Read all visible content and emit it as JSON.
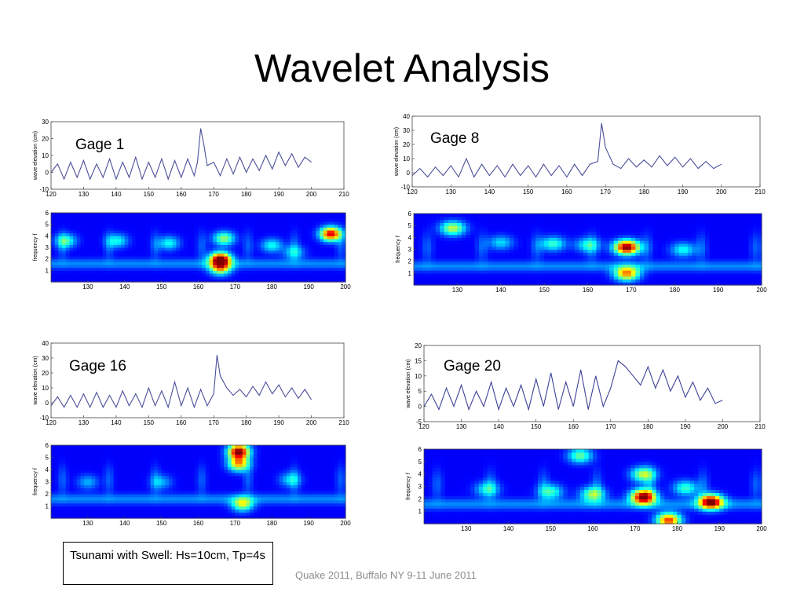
{
  "slide": {
    "title": "Wavelet Analysis",
    "note": "Tsunami with Swell: Hs=10cm, Tp=4s",
    "footer": "Quake 2011, Buffalo NY 9-11 June 2011"
  },
  "chart_data": [
    {
      "id": "g1",
      "label": "Gage 1",
      "type": "line",
      "ylabel": "wave elevation (cm)",
      "xlim": [
        120,
        210
      ],
      "ylim": [
        -10,
        30
      ],
      "xticks": [
        120,
        130,
        140,
        150,
        160,
        170,
        180,
        190,
        200,
        210
      ],
      "yticks": [
        -10,
        0,
        10,
        20,
        30
      ],
      "line_color": "#4a4f9a",
      "x": [
        120,
        122,
        124,
        126,
        128,
        130,
        132,
        134,
        136,
        138,
        140,
        142,
        144,
        146,
        148,
        150,
        152,
        154,
        156,
        158,
        160,
        162,
        164,
        165,
        166,
        167,
        168,
        170,
        172,
        174,
        176,
        178,
        180,
        182,
        184,
        186,
        188,
        190,
        192,
        194,
        196,
        198,
        200
      ],
      "y": [
        0,
        5,
        -4,
        6,
        -3,
        7,
        -4,
        5,
        -3,
        8,
        -4,
        6,
        -3,
        9,
        -4,
        6,
        -3,
        8,
        -4,
        7,
        -3,
        8,
        -2,
        6,
        26,
        16,
        4,
        6,
        -2,
        8,
        -1,
        9,
        0,
        8,
        1,
        10,
        2,
        12,
        4,
        11,
        3,
        9,
        6
      ]
    },
    {
      "id": "g1w",
      "type": "heatmap",
      "ylabel": "frequency f",
      "xlim": [
        120,
        200
      ],
      "ylim": [
        0,
        6
      ],
      "xticks": [
        130,
        140,
        150,
        160,
        170,
        180,
        190,
        200
      ],
      "yticks": [
        1,
        2,
        3,
        4,
        5,
        6
      ],
      "colormap": "jet",
      "blobs": [
        {
          "x": 166,
          "f": 2.0,
          "amp": 1.0
        },
        {
          "x": 166,
          "f": 1.2,
          "amp": 0.55
        },
        {
          "x": 167,
          "f": 3.8,
          "amp": 0.45
        },
        {
          "x": 196,
          "f": 4.2,
          "amp": 0.9
        },
        {
          "x": 124,
          "f": 3.6,
          "amp": 0.35
        },
        {
          "x": 138,
          "f": 3.6,
          "amp": 0.3
        },
        {
          "x": 152,
          "f": 3.4,
          "amp": 0.3
        },
        {
          "x": 180,
          "f": 3.2,
          "amp": 0.3
        },
        {
          "x": 186,
          "f": 2.6,
          "amp": 0.25
        }
      ]
    },
    {
      "id": "g8",
      "label": "Gage 8",
      "type": "line",
      "ylabel": "wave elevation (cm)",
      "xlim": [
        120,
        210
      ],
      "ylim": [
        -10,
        40
      ],
      "xticks": [
        120,
        130,
        140,
        150,
        160,
        170,
        180,
        190,
        200,
        210
      ],
      "yticks": [
        -10,
        0,
        10,
        20,
        30,
        40
      ],
      "line_color": "#4a4f9a",
      "x": [
        120,
        122,
        124,
        126,
        128,
        130,
        132,
        134,
        136,
        138,
        140,
        142,
        144,
        146,
        148,
        150,
        152,
        154,
        156,
        158,
        160,
        162,
        164,
        166,
        168,
        169,
        170,
        172,
        174,
        176,
        178,
        180,
        182,
        184,
        186,
        188,
        190,
        192,
        194,
        196,
        198,
        200
      ],
      "y": [
        -2,
        3,
        -3,
        4,
        -2,
        5,
        -3,
        10,
        -3,
        6,
        -2,
        5,
        -3,
        6,
        -2,
        5,
        -3,
        6,
        -2,
        5,
        -3,
        6,
        -2,
        6,
        8,
        35,
        18,
        6,
        3,
        10,
        4,
        9,
        4,
        12,
        5,
        11,
        4,
        10,
        3,
        8,
        3,
        6
      ]
    },
    {
      "id": "g8w",
      "type": "heatmap",
      "ylabel": "frequency f",
      "xlim": [
        120,
        200
      ],
      "ylim": [
        0,
        6
      ],
      "xticks": [
        130,
        140,
        150,
        160,
        170,
        180,
        190,
        200
      ],
      "yticks": [
        1,
        2,
        3,
        4,
        5,
        6
      ],
      "colormap": "jet",
      "blobs": [
        {
          "x": 169,
          "f": 3.2,
          "amp": 1.0
        },
        {
          "x": 169,
          "f": 1.0,
          "amp": 0.7
        },
        {
          "x": 129,
          "f": 4.8,
          "amp": 0.5
        },
        {
          "x": 152,
          "f": 3.5,
          "amp": 0.35
        },
        {
          "x": 182,
          "f": 3.0,
          "amp": 0.3
        },
        {
          "x": 160,
          "f": 3.4,
          "amp": 0.3
        },
        {
          "x": 140,
          "f": 3.6,
          "amp": 0.25
        }
      ]
    },
    {
      "id": "g16",
      "label": "Gage 16",
      "type": "line",
      "ylabel": "wave elevation (cm)",
      "xlim": [
        120,
        210
      ],
      "ylim": [
        -10,
        40
      ],
      "xticks": [
        120,
        130,
        140,
        150,
        160,
        170,
        180,
        190,
        200,
        210
      ],
      "yticks": [
        -10,
        0,
        10,
        20,
        30,
        40
      ],
      "line_color": "#4a4f9a",
      "x": [
        120,
        122,
        124,
        126,
        128,
        130,
        132,
        134,
        136,
        138,
        140,
        142,
        144,
        146,
        148,
        150,
        152,
        154,
        156,
        158,
        160,
        162,
        164,
        166,
        168,
        170,
        171,
        172,
        174,
        176,
        178,
        180,
        182,
        184,
        186,
        188,
        190,
        192,
        194,
        196,
        198,
        200
      ],
      "y": [
        -2,
        4,
        -3,
        5,
        -3,
        6,
        -3,
        7,
        -3,
        5,
        -3,
        8,
        -2,
        6,
        -3,
        10,
        -2,
        8,
        -3,
        14,
        -2,
        10,
        -3,
        9,
        -2,
        6,
        32,
        18,
        10,
        5,
        9,
        4,
        11,
        5,
        14,
        6,
        12,
        4,
        10,
        3,
        9,
        2
      ]
    },
    {
      "id": "g16w",
      "type": "heatmap",
      "ylabel": "frequency f",
      "xlim": [
        120,
        200
      ],
      "ylim": [
        0,
        6
      ],
      "xticks": [
        130,
        140,
        150,
        160,
        170,
        180,
        190,
        200
      ],
      "yticks": [
        1,
        2,
        3,
        4,
        5,
        6
      ],
      "colormap": "jet",
      "blobs": [
        {
          "x": 171,
          "f": 5.5,
          "amp": 1.0
        },
        {
          "x": 171,
          "f": 4.5,
          "amp": 0.65
        },
        {
          "x": 172,
          "f": 1.2,
          "amp": 0.5
        },
        {
          "x": 185,
          "f": 3.2,
          "amp": 0.25
        },
        {
          "x": 130,
          "f": 3.0,
          "amp": 0.2
        },
        {
          "x": 150,
          "f": 3.0,
          "amp": 0.2
        }
      ]
    },
    {
      "id": "g20",
      "label": "Gage 20",
      "type": "line",
      "ylabel": "wave elevation (cm)",
      "xlim": [
        120,
        210
      ],
      "ylim": [
        -5,
        20
      ],
      "xticks": [
        120,
        130,
        140,
        150,
        160,
        170,
        180,
        190,
        200,
        210
      ],
      "yticks": [
        -5,
        0,
        5,
        10,
        15,
        20
      ],
      "line_color": "#3c4298",
      "x": [
        120,
        122,
        124,
        126,
        128,
        130,
        132,
        134,
        136,
        138,
        140,
        142,
        144,
        146,
        148,
        150,
        152,
        154,
        156,
        158,
        160,
        162,
        164,
        166,
        168,
        170,
        172,
        174,
        176,
        178,
        180,
        182,
        184,
        186,
        188,
        190,
        192,
        194,
        196,
        198,
        200
      ],
      "y": [
        0,
        4,
        -1,
        6,
        0,
        7,
        -1,
        5,
        0,
        8,
        -1,
        6,
        0,
        7,
        -1,
        9,
        0,
        11,
        -1,
        8,
        0,
        12,
        -1,
        10,
        0,
        6,
        15,
        13,
        10,
        7,
        13,
        6,
        12,
        5,
        10,
        3,
        8,
        2,
        6,
        1,
        2
      ]
    },
    {
      "id": "g20w",
      "type": "heatmap",
      "ylabel": "frequency f",
      "xlim": [
        120,
        200
      ],
      "ylim": [
        0,
        6
      ],
      "xticks": [
        130,
        140,
        150,
        160,
        170,
        180,
        190,
        200
      ],
      "yticks": [
        1,
        2,
        3,
        4,
        5,
        6
      ],
      "colormap": "jet",
      "blobs": [
        {
          "x": 172,
          "f": 2.2,
          "amp": 1.0
        },
        {
          "x": 188,
          "f": 1.8,
          "amp": 0.95
        },
        {
          "x": 178,
          "f": 0.3,
          "amp": 0.8
        },
        {
          "x": 172,
          "f": 4.0,
          "amp": 0.5
        },
        {
          "x": 157,
          "f": 5.5,
          "amp": 0.4
        },
        {
          "x": 160,
          "f": 2.4,
          "amp": 0.45
        },
        {
          "x": 150,
          "f": 2.6,
          "amp": 0.35
        },
        {
          "x": 135,
          "f": 2.8,
          "amp": 0.3
        },
        {
          "x": 182,
          "f": 2.9,
          "amp": 0.35
        }
      ]
    }
  ]
}
